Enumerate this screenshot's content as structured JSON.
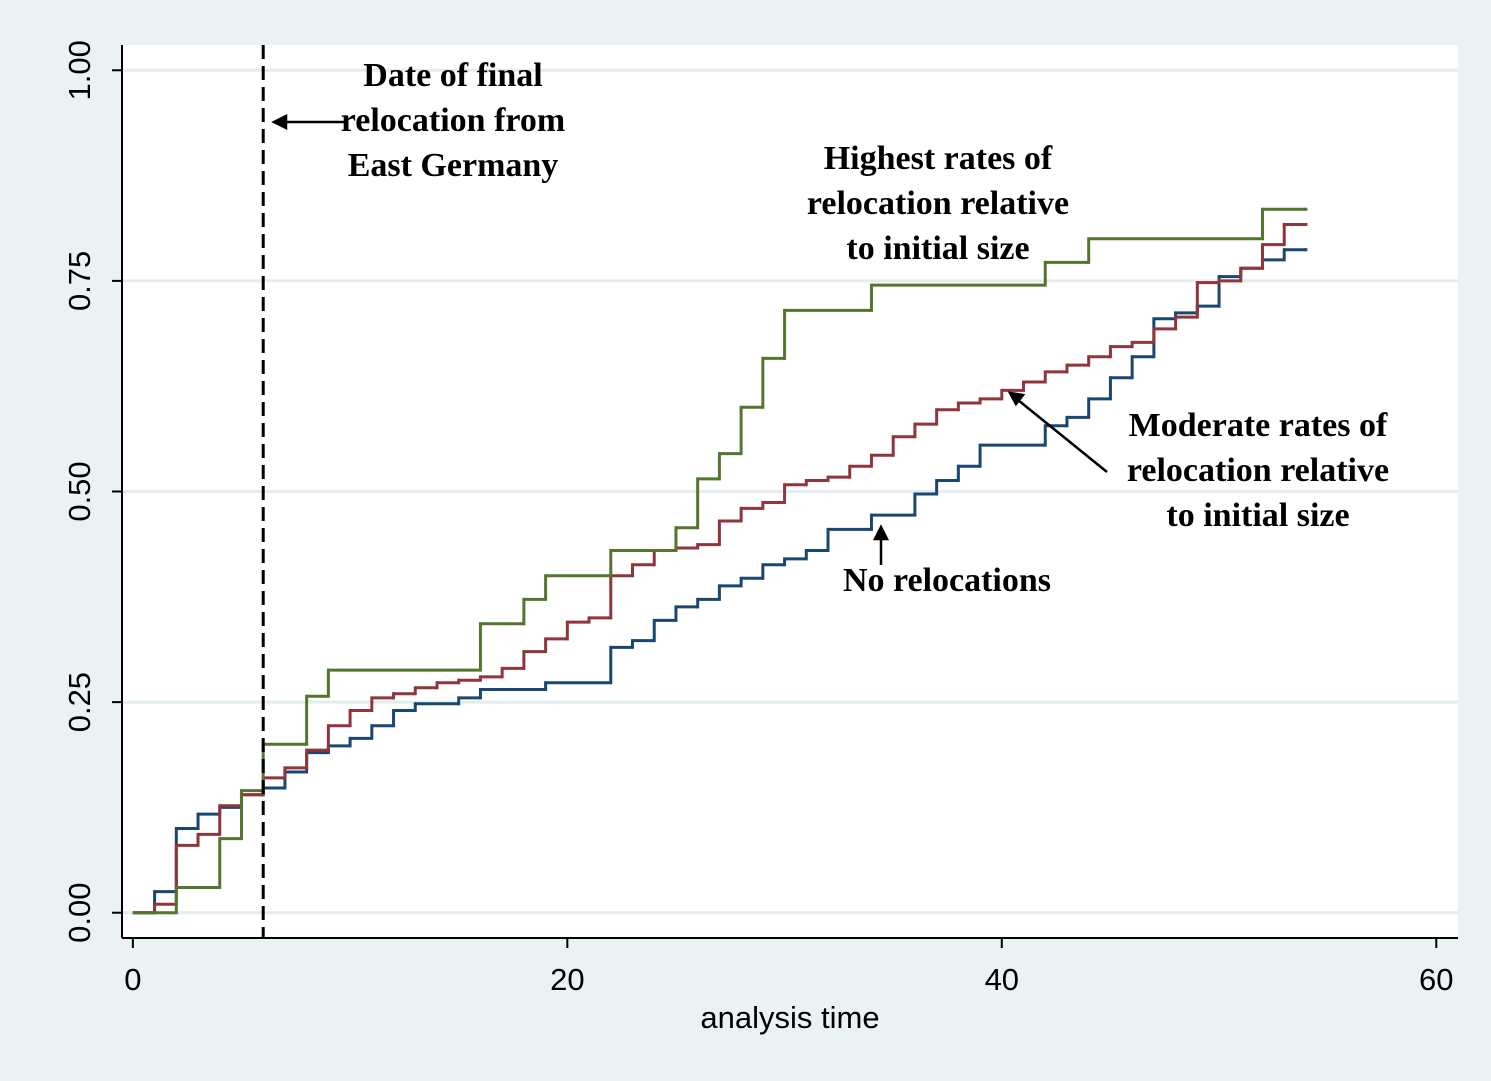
{
  "chart_data": {
    "type": "step",
    "xlabel": "analysis time",
    "xlim": [
      -0.5,
      61
    ],
    "ylim": [
      -0.03,
      1.03
    ],
    "xticks": [
      0,
      20,
      40,
      60
    ],
    "yticks": [
      {
        "value": 0,
        "label": "0.00"
      },
      {
        "value": 0.25,
        "label": "0.25"
      },
      {
        "value": 0.5,
        "label": "0.50"
      },
      {
        "value": 0.75,
        "label": "0.75"
      },
      {
        "value": 1,
        "label": "1.00"
      }
    ],
    "grid": true,
    "vline": 6,
    "annotations": [
      {
        "lines": [
          "Date of final",
          "relocation from",
          "East Germany"
        ]
      },
      {
        "lines": [
          "Highest rates of",
          "relocation relative",
          "to initial size"
        ]
      },
      {
        "lines": [
          "Moderate rates of",
          "relocation relative",
          "to initial size"
        ]
      },
      {
        "lines": [
          "No relocations"
        ]
      }
    ],
    "series": [
      {
        "color": "#1a476f",
        "x": [
          0,
          1,
          2,
          3,
          4,
          5,
          6,
          7,
          8,
          9,
          10,
          11,
          12,
          13,
          15,
          16,
          19,
          22,
          23,
          24,
          25,
          26,
          27,
          28,
          29,
          30,
          31,
          32,
          34,
          36,
          37,
          38,
          39,
          42,
          43,
          44,
          45,
          46,
          47,
          48,
          49,
          50,
          51,
          52,
          53,
          54
        ],
        "values": [
          0,
          0.025,
          0.1,
          0.117,
          0.125,
          0.14,
          0.148,
          0.167,
          0.19,
          0.198,
          0.207,
          0.222,
          0.24,
          0.248,
          0.255,
          0.265,
          0.273,
          0.315,
          0.323,
          0.347,
          0.363,
          0.372,
          0.388,
          0.397,
          0.413,
          0.42,
          0.43,
          0.455,
          0.472,
          0.497,
          0.513,
          0.53,
          0.555,
          0.578,
          0.588,
          0.61,
          0.635,
          0.66,
          0.705,
          0.712,
          0.72,
          0.755,
          0.765,
          0.775,
          0.787,
          0.787
        ]
      },
      {
        "color": "#90353b",
        "x": [
          0,
          1,
          2,
          3,
          4,
          5,
          6,
          7,
          8,
          9,
          10,
          11,
          12,
          13,
          14,
          15,
          16,
          17,
          18,
          19,
          20,
          21,
          22,
          23,
          24,
          25,
          26,
          27,
          28,
          29,
          30,
          31,
          32,
          33,
          34,
          35,
          36,
          37,
          38,
          39,
          40,
          41,
          42,
          43,
          44,
          45,
          46,
          47,
          48,
          49,
          50,
          51,
          52,
          53,
          54
        ],
        "values": [
          0,
          0.01,
          0.08,
          0.093,
          0.127,
          0.14,
          0.16,
          0.172,
          0.193,
          0.222,
          0.24,
          0.255,
          0.26,
          0.267,
          0.273,
          0.276,
          0.28,
          0.29,
          0.31,
          0.325,
          0.345,
          0.35,
          0.4,
          0.413,
          0.43,
          0.433,
          0.437,
          0.465,
          0.48,
          0.487,
          0.508,
          0.513,
          0.517,
          0.53,
          0.543,
          0.565,
          0.58,
          0.597,
          0.605,
          0.61,
          0.62,
          0.63,
          0.642,
          0.65,
          0.66,
          0.672,
          0.677,
          0.693,
          0.707,
          0.748,
          0.75,
          0.765,
          0.793,
          0.817,
          0.817
        ]
      },
      {
        "color": "#55752f",
        "x": [
          0,
          2,
          4,
          5,
          6,
          8,
          9,
          16,
          18,
          19,
          22,
          25,
          26,
          27,
          28,
          29,
          30,
          34,
          42,
          44,
          52,
          54
        ],
        "values": [
          0,
          0.03,
          0.088,
          0.145,
          0.2,
          0.257,
          0.288,
          0.343,
          0.372,
          0.4,
          0.43,
          0.457,
          0.515,
          0.545,
          0.6,
          0.658,
          0.715,
          0.745,
          0.772,
          0.8,
          0.835,
          0.835
        ]
      }
    ]
  }
}
